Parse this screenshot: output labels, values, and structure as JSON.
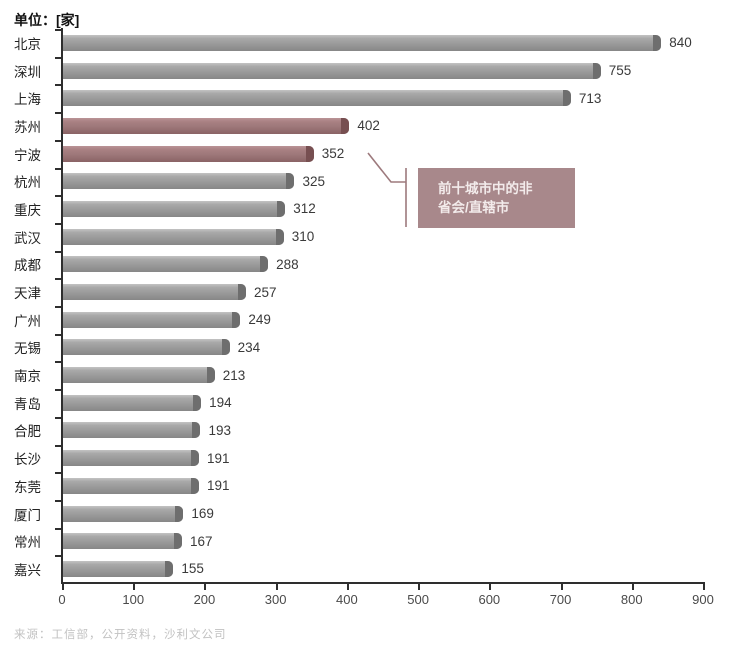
{
  "title": "单位：[家]",
  "source": "来源：工信部，公开资料，沙利文公司",
  "annotation": {
    "line1": "前十城市中的非",
    "line2": "省会/直辖市",
    "full_text": "前十城市中的非省会/直辖市"
  },
  "chart_data": {
    "type": "bar",
    "orientation": "horizontal",
    "title": "单位：[家]",
    "categories": [
      "北京",
      "深圳",
      "上海",
      "苏州",
      "宁波",
      "杭州",
      "重庆",
      "武汉",
      "成都",
      "天津",
      "广州",
      "无锡",
      "南京",
      "青岛",
      "合肥",
      "长沙",
      "东莞",
      "厦门",
      "常州",
      "嘉兴"
    ],
    "values": [
      840,
      755,
      713,
      402,
      352,
      325,
      312,
      310,
      288,
      257,
      249,
      234,
      213,
      194,
      193,
      191,
      191,
      169,
      167,
      155
    ],
    "highlighted_categories": [
      "苏州",
      "宁波"
    ],
    "highlight_note": "前十城市中的非省会/直辖市",
    "xlim": [
      0,
      900
    ],
    "x_ticks": [
      0,
      100,
      200,
      300,
      400,
      500,
      600,
      700,
      800,
      900
    ],
    "grid": false,
    "legend": false
  },
  "colors": {
    "bar": "#9a9a9a",
    "bar_cap": "#6e6e6e",
    "bar_highlight": "#9d7779",
    "bar_highlight_cap": "#774f51",
    "annotation_bg": "#a8888b",
    "annotation_text": "#f3ebeb",
    "callout_line": "#9d7a7d",
    "axis": "#2e2e2e"
  }
}
